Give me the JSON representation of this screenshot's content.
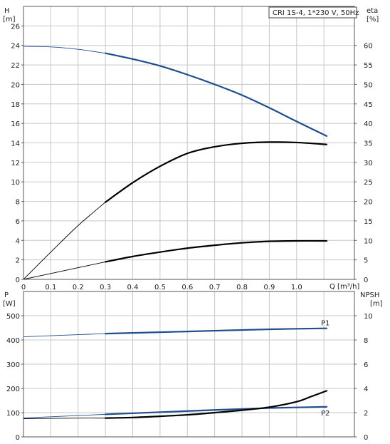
{
  "colors": {
    "blue": "#1f4e8c",
    "black": "#000000",
    "grid": "#c8c8c8",
    "frame": "#555555",
    "text": "#222222"
  },
  "chart_data": [
    {
      "type": "line",
      "panel": "top",
      "legend_box": "CRI 1S-4, 1*230 V, 50Hz",
      "xlabel": "Q [m³/h]",
      "ylabel_left": [
        "H",
        "[m]"
      ],
      "ylabel_right": [
        "eta",
        "[%]"
      ],
      "xlim": [
        0,
        1.1
      ],
      "ylim_left": [
        0,
        28
      ],
      "ylim_right": [
        0,
        70
      ],
      "x_ticks": [
        0,
        0.1,
        0.2,
        0.3,
        0.4,
        0.5,
        0.6,
        0.7,
        0.8,
        0.9,
        1.0
      ],
      "x_tick_labels": [
        "0",
        "0.1",
        "0.2",
        "0.3",
        "0.4",
        "0.5",
        "0.6",
        "0.7",
        "0.8",
        "0.9",
        "1.0"
      ],
      "y_left_ticks": [
        0,
        2,
        4,
        6,
        8,
        10,
        12,
        14,
        16,
        18,
        20,
        22,
        24,
        26
      ],
      "y_right_ticks": [
        0,
        5,
        10,
        15,
        20,
        25,
        30,
        35,
        40,
        45,
        50,
        55,
        60
      ],
      "grid": true,
      "series": [
        {
          "axis": "left",
          "color": "blue",
          "x": [
            0,
            0.1,
            0.2,
            0.3,
            0.4,
            0.5,
            0.6,
            0.7,
            0.8,
            0.9,
            1.0,
            1.11
          ],
          "y": [
            23.9,
            23.85,
            23.6,
            23.2,
            22.6,
            21.9,
            21.0,
            20.0,
            18.9,
            17.6,
            16.2,
            14.7
          ],
          "thin_until": 0.3
        },
        {
          "axis": "right",
          "color": "black",
          "x": [
            0,
            0.1,
            0.2,
            0.3,
            0.4,
            0.5,
            0.6,
            0.7,
            0.8,
            0.9,
            1.0,
            1.11
          ],
          "y": [
            0,
            7.0,
            13.8,
            19.8,
            24.8,
            29.0,
            32.3,
            34.0,
            34.9,
            35.2,
            35.1,
            34.6
          ],
          "thin_until": 0.3
        },
        {
          "axis": "left",
          "color": "black",
          "x": [
            0,
            0.1,
            0.2,
            0.3,
            0.4,
            0.5,
            0.6,
            0.7,
            0.8,
            0.9,
            1.0,
            1.11
          ],
          "y": [
            0,
            0.6,
            1.2,
            1.8,
            2.35,
            2.8,
            3.2,
            3.5,
            3.75,
            3.9,
            3.95,
            3.95
          ],
          "thin_until": 0.3
        }
      ]
    },
    {
      "type": "line",
      "panel": "bottom",
      "ylabel_left": [
        "P",
        "[W]"
      ],
      "ylabel_right": [
        "NPSH",
        "[m]"
      ],
      "xlim": [
        0,
        1.1
      ],
      "ylim_left": [
        0,
        600
      ],
      "ylim_right": [
        0,
        12
      ],
      "y_left_ticks": [
        0,
        100,
        200,
        300,
        400,
        500
      ],
      "y_right_ticks": [
        0,
        2,
        4,
        6,
        8,
        10
      ],
      "grid": true,
      "series": [
        {
          "name": "P1",
          "axis": "left",
          "color": "blue",
          "x": [
            0,
            0.2,
            0.3,
            0.5,
            0.7,
            0.9,
            1.11
          ],
          "y": [
            413,
            422,
            426,
            432,
            438,
            444,
            448
          ],
          "thin_until": 0.3
        },
        {
          "name": "P2",
          "axis": "left",
          "color": "blue",
          "x": [
            0,
            0.2,
            0.3,
            0.5,
            0.7,
            0.9,
            1.11
          ],
          "y": [
            78,
            88,
            93,
            102,
            111,
            119,
            124
          ],
          "thin_until": 0.3
        },
        {
          "axis": "right",
          "color": "black",
          "x": [
            0,
            0.2,
            0.3,
            0.4,
            0.5,
            0.6,
            0.7,
            0.8,
            0.9,
            1.0,
            1.05,
            1.11
          ],
          "y": [
            1.5,
            1.55,
            1.55,
            1.6,
            1.7,
            1.82,
            2.0,
            2.2,
            2.45,
            2.9,
            3.3,
            3.8
          ],
          "thin_until": 0.3
        }
      ]
    }
  ]
}
